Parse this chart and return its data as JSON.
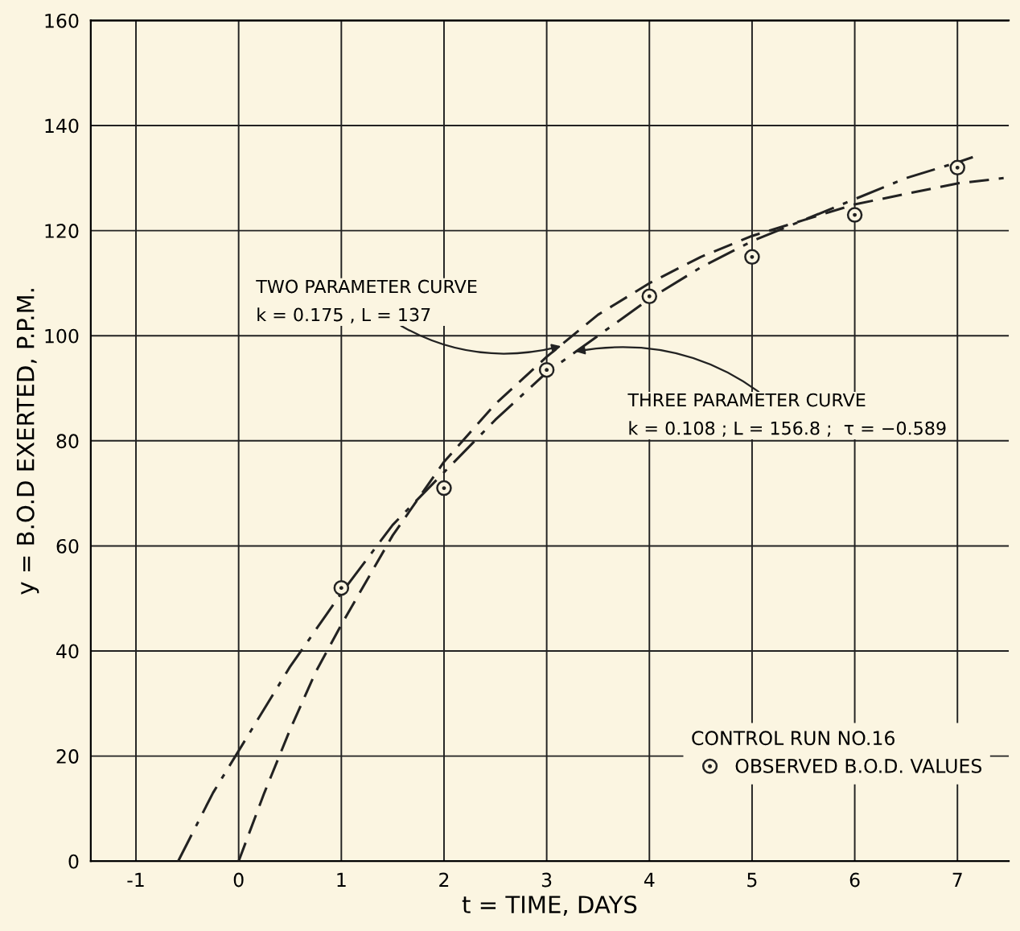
{
  "chart_data": {
    "type": "line",
    "xlabel": "t = TIME, DAYS",
    "ylabel": "y = B.O.D EXERTED, P.P.M.",
    "legend_title": "CONTROL RUN NO.16",
    "series": [
      {
        "color": "#222222",
        "line_style": "dashed",
        "marker": "none",
        "x": [
          0,
          0.25,
          0.5,
          0.75,
          1,
          1.5,
          2,
          2.5,
          3,
          3.5,
          4,
          4.5,
          5,
          5.5,
          6,
          6.5,
          7,
          7.45
        ],
        "values": [
          0,
          13,
          25,
          36,
          45,
          62,
          76,
          87,
          96,
          104,
          110,
          115,
          119,
          122,
          125,
          127,
          129,
          130
        ]
      },
      {
        "color": "#222222",
        "line_style": "dashdot",
        "marker": "none",
        "x": [
          -0.589,
          -0.25,
          0,
          0.5,
          1,
          1.5,
          2,
          2.5,
          3,
          3.5,
          4,
          4.5,
          5,
          5.5,
          6,
          6.5,
          7,
          7.15
        ],
        "values": [
          0,
          13,
          21,
          37,
          51,
          64,
          74,
          84,
          93,
          100,
          107,
          113,
          118,
          122,
          126,
          130,
          133,
          134
        ]
      },
      {
        "type": "scatter",
        "name": "OBSERVED B.O.D. VALUES",
        "color": "#222222",
        "marker": "circle",
        "x": [
          1,
          2,
          3,
          4,
          5,
          6,
          7
        ],
        "values": [
          52,
          71,
          93.5,
          107.5,
          115,
          123,
          132
        ]
      }
    ],
    "annotations": [
      {
        "text": "TWO PARAMETER CURVE\nk = 0.175 , L = 137",
        "x": 3.14,
        "y": 98
      },
      {
        "text": "THREE PARAMETER CURVE\nk = 0.108 ; L = 156.8 ;  τ = −0.589",
        "x": 3.28,
        "y": 97
      }
    ],
    "xlim": [
      -1.44,
      7.5
    ],
    "ylim": [
      0,
      160
    ],
    "xticks": [
      -1,
      0,
      1,
      2,
      3,
      4,
      5,
      6,
      7
    ],
    "yticks": [
      0,
      20,
      40,
      60,
      80,
      100,
      120,
      140,
      160
    ],
    "grid": true,
    "legend": "bottom right"
  }
}
